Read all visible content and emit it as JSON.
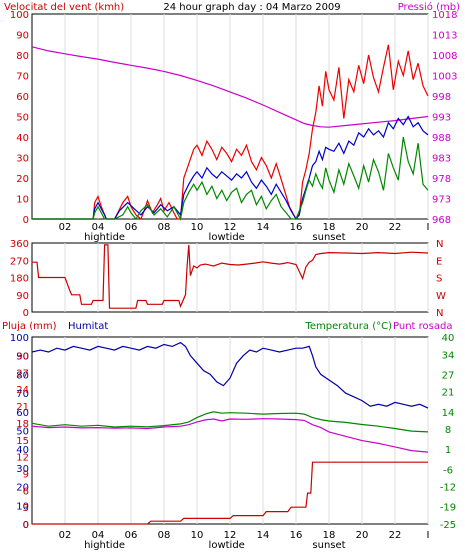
{
  "chart_data": [
    {
      "type": "line",
      "title": "24 hour graph day : 04 Marzo 2009",
      "left_axis_label": "Velocitat del vent (kmh)",
      "right_axis_label": "Pressió (mb)",
      "x_hours": [
        0,
        24
      ],
      "x_tick_labels": [
        "02",
        "04",
        "06",
        "08",
        "10",
        "12",
        "14",
        "16",
        "18",
        "20",
        "22",
        "I"
      ],
      "x_ticks": [
        2,
        4,
        6,
        8,
        10,
        12,
        14,
        16,
        18,
        20,
        22,
        24
      ],
      "x_annotations": [
        {
          "text": "hightide",
          "hour": 4.4
        },
        {
          "text": "lowtide",
          "hour": 11.8
        },
        {
          "text": "sunset",
          "hour": 18.0
        }
      ],
      "ylim": [
        0,
        100
      ],
      "y_ticks": [
        0,
        10,
        20,
        30,
        40,
        50,
        60,
        70,
        80,
        90,
        100
      ],
      "y2lim": [
        968,
        1018
      ],
      "y2_ticks": [
        968,
        973,
        978,
        983,
        988,
        993,
        998,
        1003,
        1008,
        1013,
        1018
      ],
      "series": [
        {
          "axis": "right",
          "color": "#cc00cc",
          "x": [
            0,
            1,
            2,
            3,
            4,
            5,
            6,
            7,
            8,
            9,
            10,
            11,
            12,
            13,
            14,
            15,
            16,
            16.5,
            17,
            17.5,
            18,
            19,
            20,
            21,
            22,
            23,
            24
          ],
          "values": [
            1010,
            1009,
            1008.3,
            1007.6,
            1007,
            1006.2,
            1005.5,
            1004.8,
            1004,
            1003,
            1001.8,
            1000.5,
            999,
            997.5,
            995.8,
            994,
            992.2,
            991.3,
            990.8,
            990.5,
            990.4,
            990.8,
            991.2,
            991.6,
            992,
            992.5,
            993
          ]
        },
        {
          "axis": "left",
          "color": "#ee0000",
          "x": [
            0,
            3.7,
            3.8,
            4,
            4.2,
            4.4,
            4.5,
            5,
            5.2,
            5.5,
            5.8,
            6,
            6.3,
            6.6,
            6.8,
            7,
            7.3,
            7.6,
            7.8,
            8,
            8.3,
            8.6,
            8.8,
            9,
            9.2,
            9.5,
            9.8,
            10,
            10.3,
            10.6,
            10.9,
            11.2,
            11.5,
            11.8,
            12.1,
            12.4,
            12.7,
            13,
            13.3,
            13.6,
            13.9,
            14.2,
            14.5,
            14.8,
            15,
            15.3,
            15.6,
            16,
            16.2,
            16.4,
            16.6,
            16.8,
            17,
            17.2,
            17.4,
            17.6,
            17.8,
            18,
            18.3,
            18.6,
            18.9,
            19.2,
            19.5,
            19.8,
            20.1,
            20.4,
            20.7,
            21,
            21.3,
            21.6,
            21.9,
            22.2,
            22.5,
            22.8,
            23.1,
            23.4,
            23.7,
            24
          ],
          "values": [
            0,
            0,
            8,
            11,
            6,
            2,
            0,
            0,
            3,
            8,
            11,
            6,
            2,
            0,
            4,
            9,
            3,
            7,
            10,
            4,
            8,
            3,
            0,
            0,
            20,
            27,
            34,
            36,
            31,
            38,
            34,
            29,
            35,
            32,
            28,
            34,
            31,
            36,
            28,
            24,
            30,
            26,
            20,
            27,
            22,
            14,
            6,
            0,
            2,
            18,
            24,
            32,
            44,
            52,
            65,
            55,
            72,
            63,
            58,
            74,
            49,
            68,
            62,
            75,
            66,
            80,
            69,
            62,
            74,
            85,
            63,
            77,
            70,
            82,
            68,
            76,
            65,
            60
          ]
        },
        {
          "axis": "left",
          "color": "#0000cc",
          "x": [
            0,
            3.7,
            3.8,
            4,
            4.2,
            4.4,
            4.5,
            5,
            5.3,
            5.8,
            6.2,
            6.6,
            7,
            7.4,
            7.8,
            8.2,
            8.6,
            9,
            9.2,
            9.5,
            9.8,
            10,
            10.3,
            10.6,
            10.9,
            11.2,
            11.5,
            11.8,
            12.1,
            12.4,
            12.7,
            13,
            13.3,
            13.6,
            13.9,
            14.2,
            14.5,
            14.8,
            15.1,
            15.4,
            15.7,
            16,
            16.2,
            16.4,
            16.6,
            16.8,
            17,
            17.2,
            17.4,
            17.6,
            17.8,
            18,
            18.3,
            18.6,
            18.9,
            19.2,
            19.5,
            19.8,
            20.1,
            20.4,
            20.7,
            21,
            21.3,
            21.6,
            21.9,
            22.2,
            22.5,
            22.8,
            23.1,
            23.4,
            23.7,
            24
          ],
          "values": [
            0,
            0,
            5,
            8,
            5,
            2,
            0,
            0,
            4,
            8,
            5,
            2,
            6,
            3,
            7,
            4,
            6,
            2,
            12,
            17,
            21,
            23,
            20,
            25,
            22,
            20,
            23,
            21,
            19,
            22,
            20,
            23,
            18,
            15,
            19,
            16,
            12,
            17,
            13,
            9,
            4,
            0,
            2,
            10,
            15,
            20,
            26,
            28,
            33,
            29,
            35,
            34,
            33,
            37,
            32,
            38,
            36,
            42,
            40,
            44,
            41,
            43,
            40,
            47,
            44,
            49,
            46,
            50,
            45,
            47,
            43,
            41
          ]
        },
        {
          "axis": "left",
          "color": "#008800",
          "x": [
            0,
            3.7,
            3.8,
            4,
            4.2,
            4.4,
            5,
            5.5,
            5.8,
            6,
            6.3,
            6.6,
            7,
            7.4,
            7.8,
            8.2,
            8.6,
            9,
            9.2,
            9.5,
            9.8,
            10,
            10.3,
            10.6,
            10.9,
            11.2,
            11.5,
            11.8,
            12.1,
            12.4,
            12.7,
            13,
            13.3,
            13.6,
            13.9,
            14.2,
            14.5,
            14.8,
            15.1,
            15.4,
            15.7,
            16,
            16.2,
            16.4,
            16.6,
            16.8,
            17,
            17.2,
            17.4,
            17.6,
            17.8,
            18,
            18.3,
            18.6,
            18.9,
            19.2,
            19.5,
            19.8,
            20.1,
            20.4,
            20.7,
            21,
            21.3,
            21.6,
            21.9,
            22.2,
            22.5,
            22.8,
            23.1,
            23.4,
            23.7,
            24
          ],
          "values": [
            0,
            0,
            3,
            6,
            3,
            0,
            0,
            2,
            6,
            3,
            0,
            4,
            7,
            2,
            5,
            1,
            6,
            0,
            8,
            13,
            17,
            14,
            18,
            12,
            16,
            10,
            14,
            9,
            13,
            15,
            8,
            12,
            14,
            7,
            11,
            5,
            9,
            12,
            6,
            3,
            0,
            0,
            4,
            8,
            14,
            19,
            16,
            22,
            18,
            15,
            25,
            19,
            13,
            24,
            17,
            27,
            21,
            15,
            26,
            18,
            29,
            23,
            14,
            32,
            25,
            19,
            40,
            28,
            22,
            37,
            17,
            14
          ]
        }
      ]
    },
    {
      "type": "line",
      "title": "",
      "ylim": [
        0,
        360
      ],
      "y_ticks": [
        0,
        90,
        180,
        270,
        360
      ],
      "right_tick_labels": [
        "N",
        "W",
        "S",
        "E",
        "N"
      ],
      "series": [
        {
          "color": "#cc0000",
          "x": [
            0,
            0.3,
            0.4,
            2,
            2.3,
            2.4,
            2.9,
            3,
            3.6,
            3.7,
            4.3,
            4.4,
            4.6,
            4.7,
            6.3,
            6.4,
            6.9,
            7,
            7.9,
            8,
            8.9,
            9,
            9.3,
            9.4,
            9.5,
            9.6,
            9.8,
            10,
            10.2,
            10.5,
            11,
            11.5,
            12,
            12.5,
            13,
            13.5,
            14,
            14.5,
            15,
            15.5,
            16,
            16.4,
            16.6,
            16.8,
            17,
            17.2,
            17.5,
            18,
            19,
            20,
            21,
            22,
            23,
            24
          ],
          "values": [
            260,
            260,
            180,
            180,
            110,
            90,
            90,
            40,
            40,
            60,
            60,
            350,
            350,
            20,
            20,
            60,
            60,
            40,
            40,
            60,
            60,
            30,
            90,
            240,
            350,
            190,
            240,
            230,
            245,
            250,
            240,
            255,
            248,
            245,
            250,
            255,
            262,
            255,
            250,
            258,
            248,
            175,
            235,
            260,
            270,
            300,
            305,
            310,
            308,
            305,
            310,
            305,
            312,
            308
          ]
        }
      ]
    },
    {
      "type": "line",
      "title": "",
      "left_label_1": "Pluja (mm)",
      "left_label_2": "Humitat",
      "right_label_1": "Temperatura (°C)",
      "right_label_2": "Punt rosada",
      "x_hours": [
        0,
        24
      ],
      "x_tick_labels": [
        "02",
        "04",
        "06",
        "08",
        "10",
        "12",
        "14",
        "16",
        "18",
        "20",
        "22",
        "I"
      ],
      "x_ticks": [
        2,
        4,
        6,
        8,
        10,
        12,
        14,
        16,
        18,
        20,
        22,
        24
      ],
      "x_annotations": [
        {
          "text": "hightide",
          "hour": 4.4
        },
        {
          "text": "lowtide",
          "hour": 11.8
        },
        {
          "text": "sunset",
          "hour": 18.0
        }
      ],
      "humidity_axis": {
        "ylim": [
          0,
          100
        ],
        "ticks": [
          0,
          10,
          20,
          30,
          40,
          50,
          60,
          70,
          80,
          90,
          100
        ]
      },
      "rain_axis": {
        "ylim": [
          0,
          33.3
        ],
        "ticks": [
          0,
          3,
          6,
          9,
          12,
          15,
          18,
          21,
          24,
          27,
          30
        ]
      },
      "temp_axis": {
        "ylim": [
          -25,
          40
        ],
        "ticks": [
          -25,
          -19,
          -12,
          -6,
          1,
          8,
          14,
          21,
          27,
          34,
          40
        ]
      },
      "series": [
        {
          "name": "Humitat",
          "axis": "humidity",
          "color": "#0000aa",
          "x": [
            0,
            0.5,
            1,
            1.5,
            2,
            2.5,
            3,
            3.5,
            4,
            4.5,
            5,
            5.5,
            6,
            6.5,
            7,
            7.5,
            8,
            8.5,
            9,
            9.3,
            9.6,
            10,
            10.4,
            10.8,
            11.2,
            11.6,
            12,
            12.4,
            12.8,
            13.2,
            13.6,
            14,
            14.5,
            15,
            15.5,
            16,
            16.4,
            16.8,
            17,
            17.2,
            17.5,
            18,
            18.5,
            19,
            19.5,
            20,
            20.5,
            21,
            21.5,
            22,
            22.5,
            23,
            23.5,
            24
          ],
          "values": [
            92,
            93,
            92,
            94,
            93,
            95,
            94,
            93,
            95,
            94,
            93,
            95,
            94,
            93,
            95,
            94,
            96,
            95,
            97,
            95,
            90,
            86,
            82,
            80,
            76,
            74,
            78,
            86,
            90,
            93,
            92,
            94,
            93,
            92,
            93,
            94,
            94,
            95,
            90,
            84,
            80,
            77,
            74,
            70,
            68,
            66,
            63,
            64,
            63,
            65,
            64,
            63,
            64,
            62
          ]
        },
        {
          "name": "Temperatura (°C)",
          "axis": "temp",
          "color": "#008800",
          "x": [
            0,
            1,
            2,
            3,
            4,
            5,
            6,
            7,
            8,
            9,
            9.5,
            10,
            10.5,
            11,
            11.5,
            12,
            13,
            14,
            15,
            16,
            16.5,
            17,
            17.5,
            18,
            19,
            20,
            21,
            22,
            23,
            24
          ],
          "values": [
            10,
            9,
            9.5,
            9,
            9.3,
            8.7,
            9,
            8.8,
            9.2,
            9.8,
            10.5,
            12,
            13.2,
            14,
            13.5,
            13.7,
            13.5,
            13.2,
            13.4,
            13.5,
            13.2,
            12,
            11.3,
            10.8,
            10.3,
            9.6,
            9,
            8.2,
            7.3,
            7
          ]
        },
        {
          "name": "Punt rosada",
          "axis": "temp",
          "color": "#cc00cc",
          "x": [
            0,
            1,
            2,
            3,
            4,
            5,
            6,
            7,
            8,
            9,
            9.5,
            10,
            10.5,
            11,
            11.5,
            12,
            13,
            14,
            15,
            16,
            16.5,
            17,
            17.5,
            18,
            19,
            20,
            21,
            22,
            23,
            24
          ],
          "values": [
            9,
            8.5,
            8.7,
            8.4,
            8.5,
            8.3,
            8.4,
            8.2,
            8.7,
            9,
            9.5,
            10.5,
            11.2,
            11.5,
            10.8,
            11.5,
            11.4,
            11.6,
            11.5,
            11.3,
            11,
            9.5,
            8.5,
            7,
            5.5,
            4,
            3,
            1.8,
            0.5,
            0
          ]
        },
        {
          "name": "Pluja (mm)",
          "axis": "rain",
          "color": "#cc0000",
          "x": [
            0,
            7,
            7.2,
            9,
            9.2,
            12,
            12.2,
            14,
            14.2,
            15.5,
            15.7,
            16.6,
            16.7,
            16.9,
            17,
            24
          ],
          "values": [
            0,
            0,
            0.5,
            0.5,
            1.0,
            1.0,
            1.5,
            1.5,
            2.2,
            2.2,
            3.0,
            3.0,
            5.5,
            5.5,
            11,
            11
          ]
        }
      ]
    }
  ]
}
